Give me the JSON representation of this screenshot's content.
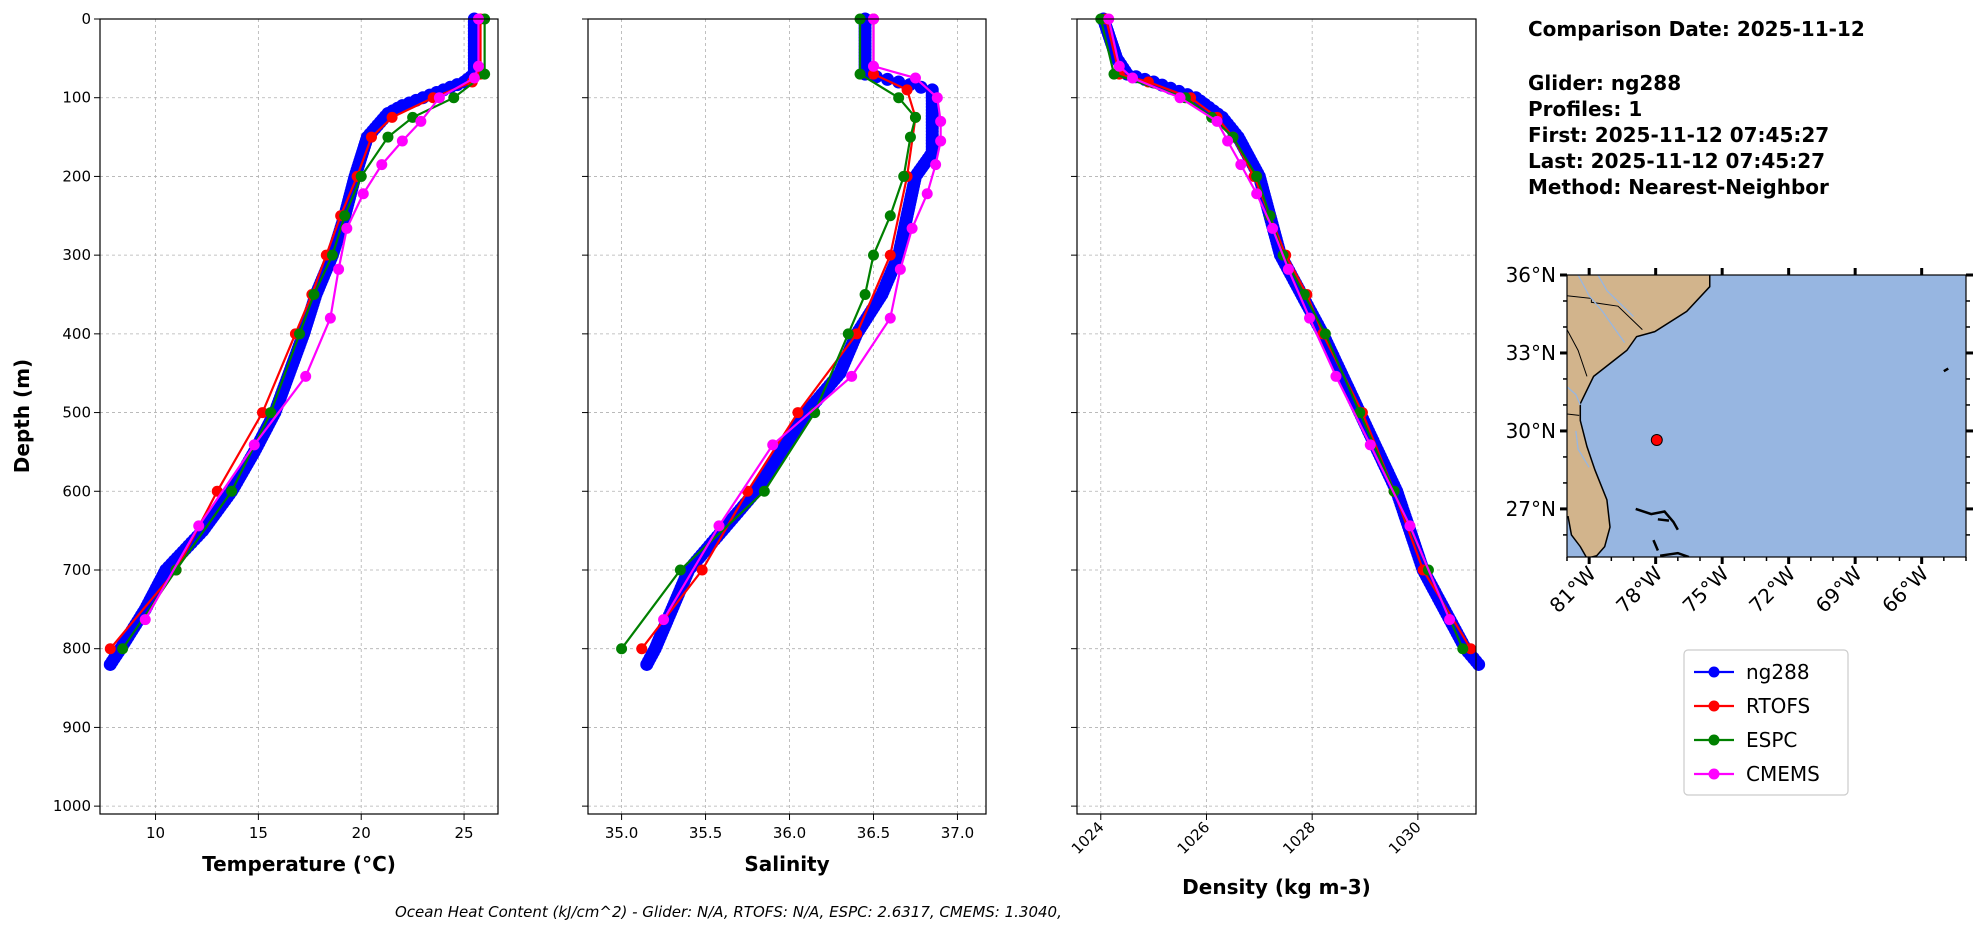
{
  "chart_data": [
    {
      "type": "line",
      "xlabel": "Temperature (°C)",
      "ylabel": "Depth (m)",
      "xlim": [
        7.3,
        26.65
      ],
      "ylim": [
        1010,
        0
      ],
      "xticks": [
        10,
        15,
        20,
        25
      ],
      "xtick_labels": [
        "10",
        "15",
        "20",
        "25"
      ],
      "yticks": [
        0,
        100,
        200,
        300,
        400,
        500,
        600,
        700,
        800,
        900,
        1000
      ],
      "ytick_labels": [
        "0",
        "100",
        "200",
        "300",
        "400",
        "500",
        "600",
        "700",
        "800",
        "900",
        "1000"
      ],
      "grid": true,
      "series": [
        {
          "name": "ng288",
          "depth": [
            0,
            70,
            80,
            90,
            100,
            110,
            120,
            150,
            200,
            250,
            300,
            350,
            400,
            450,
            500,
            550,
            600,
            650,
            700,
            750,
            800,
            820
          ],
          "values": [
            25.5,
            25.5,
            25.0,
            24.0,
            23.0,
            22.0,
            21.3,
            20.3,
            19.7,
            19.2,
            18.6,
            17.8,
            17.2,
            16.5,
            15.8,
            14.8,
            13.7,
            12.3,
            10.5,
            9.5,
            8.3,
            7.8
          ]
        },
        {
          "name": "RTOFS",
          "depth": [
            0,
            70,
            80,
            100,
            125,
            150,
            200,
            250,
            300,
            350,
            400,
            500,
            600,
            700,
            800
          ],
          "values": [
            25.8,
            25.8,
            25.4,
            23.5,
            21.5,
            20.5,
            19.8,
            19.0,
            18.3,
            17.6,
            16.8,
            15.2,
            13.0,
            11.0,
            7.8
          ]
        },
        {
          "name": "ESPC",
          "depth": [
            0,
            70,
            100,
            125,
            150,
            200,
            250,
            300,
            350,
            400,
            500,
            600,
            700,
            800
          ],
          "values": [
            26.0,
            26.0,
            24.5,
            22.5,
            21.3,
            20.0,
            19.2,
            18.6,
            17.7,
            17.0,
            15.6,
            13.7,
            11.0,
            8.4
          ]
        },
        {
          "name": "CMEMS",
          "depth": [
            0,
            60,
            75,
            100,
            130,
            155,
            185,
            222,
            266,
            318,
            380,
            454,
            541,
            644,
            763
          ],
          "values": [
            25.7,
            25.7,
            25.5,
            23.8,
            22.9,
            22.0,
            21.0,
            20.1,
            19.3,
            18.9,
            18.5,
            17.3,
            14.8,
            12.1,
            9.5
          ]
        }
      ]
    },
    {
      "type": "line",
      "xlabel": "Salinity",
      "xlim": [
        34.8,
        37.17
      ],
      "ylim": [
        1010,
        0
      ],
      "xticks": [
        35.0,
        35.5,
        36.0,
        36.5,
        37.0
      ],
      "xtick_labels": [
        "35.0",
        "35.5",
        "36.0",
        "36.5",
        "37.0"
      ],
      "yticks": [
        0,
        100,
        200,
        300,
        400,
        500,
        600,
        700,
        800,
        900,
        1000
      ],
      "grid": true,
      "series": [
        {
          "name": "ng288",
          "depth": [
            0,
            70,
            80,
            90,
            100,
            170,
            200,
            250,
            300,
            350,
            400,
            450,
            500,
            550,
            600,
            650,
            700,
            750,
            800,
            820
          ],
          "values": [
            36.45,
            36.45,
            36.65,
            36.85,
            36.85,
            36.85,
            36.75,
            36.7,
            36.65,
            36.55,
            36.4,
            36.3,
            36.1,
            35.95,
            35.8,
            35.6,
            35.4,
            35.3,
            35.2,
            35.15
          ]
        },
        {
          "name": "RTOFS",
          "depth": [
            0,
            70,
            90,
            125,
            200,
            300,
            400,
            500,
            600,
            700,
            800
          ],
          "values": [
            36.5,
            36.5,
            36.7,
            36.75,
            36.7,
            36.6,
            36.4,
            36.05,
            35.75,
            35.48,
            35.12
          ]
        },
        {
          "name": "ESPC",
          "depth": [
            0,
            70,
            100,
            125,
            150,
            200,
            250,
            300,
            350,
            400,
            500,
            600,
            700,
            800
          ],
          "values": [
            36.42,
            36.42,
            36.65,
            36.75,
            36.72,
            36.68,
            36.6,
            36.5,
            36.45,
            36.35,
            36.15,
            35.85,
            35.35,
            35.0
          ]
        },
        {
          "name": "CMEMS",
          "depth": [
            0,
            60,
            75,
            100,
            130,
            155,
            185,
            222,
            266,
            318,
            380,
            454,
            541,
            644,
            763
          ],
          "values": [
            36.5,
            36.5,
            36.75,
            36.88,
            36.9,
            36.9,
            36.87,
            36.82,
            36.73,
            36.66,
            36.6,
            36.37,
            35.9,
            35.58,
            35.25
          ]
        }
      ]
    },
    {
      "type": "line",
      "xlabel": "Density (kg m-3)",
      "xlim": [
        1023.55,
        1031.1
      ],
      "ylim": [
        1010,
        0
      ],
      "xticks": [
        1024,
        1026,
        1028,
        1030
      ],
      "xtick_labels": [
        "1024",
        "1026",
        "1028",
        "1030"
      ],
      "yticks": [
        0,
        100,
        200,
        300,
        400,
        500,
        600,
        700,
        800,
        900,
        1000
      ],
      "grid": true,
      "series": [
        {
          "name": "ng288",
          "depth": [
            0,
            50,
            70,
            80,
            100,
            125,
            150,
            200,
            300,
            400,
            500,
            600,
            700,
            800,
            820
          ],
          "values": [
            1024.05,
            1024.3,
            1024.5,
            1025.0,
            1025.8,
            1026.3,
            1026.6,
            1027.0,
            1027.4,
            1028.2,
            1028.9,
            1029.6,
            1030.1,
            1030.9,
            1031.15
          ]
        },
        {
          "name": "RTOFS",
          "depth": [
            0,
            70,
            80,
            100,
            125,
            150,
            200,
            250,
            300,
            350,
            400,
            500,
            600,
            700,
            800
          ],
          "values": [
            1024.1,
            1024.35,
            1024.9,
            1025.7,
            1026.2,
            1026.5,
            1026.9,
            1027.2,
            1027.5,
            1027.9,
            1028.2,
            1028.95,
            1029.55,
            1030.1,
            1031.0
          ]
        },
        {
          "name": "ESPC",
          "depth": [
            0,
            70,
            100,
            125,
            150,
            200,
            250,
            300,
            350,
            400,
            500,
            600,
            700,
            800
          ],
          "values": [
            1024.0,
            1024.25,
            1025.6,
            1026.1,
            1026.5,
            1026.95,
            1027.2,
            1027.45,
            1027.85,
            1028.25,
            1028.9,
            1029.55,
            1030.2,
            1030.85
          ]
        },
        {
          "name": "CMEMS",
          "depth": [
            0,
            60,
            75,
            100,
            130,
            155,
            185,
            222,
            266,
            318,
            380,
            454,
            541,
            644,
            763
          ],
          "values": [
            1024.15,
            1024.35,
            1024.6,
            1025.5,
            1026.2,
            1026.4,
            1026.65,
            1026.95,
            1027.25,
            1027.55,
            1027.95,
            1028.45,
            1029.1,
            1029.85,
            1030.6
          ]
        }
      ]
    }
  ],
  "series_colors": {
    "ng288": "#0000ff",
    "RTOFS": "#ff0000",
    "ESPC": "#008000",
    "CMEMS": "#ff00ff"
  },
  "legend": {
    "placement": "right",
    "items": [
      "ng288",
      "RTOFS",
      "ESPC",
      "CMEMS"
    ]
  },
  "info": {
    "comparison_date": "Comparison Date: 2025-11-12",
    "glider": "Glider: ng288",
    "profiles": "Profiles: 1",
    "first": "First: 2025-11-12 07:45:27",
    "last": "Last: 2025-11-12 07:45:27",
    "method": "Method: Nearest-Neighbor"
  },
  "map": {
    "lon_range": [
      -82.0,
      -64.0
    ],
    "lat_range": [
      25.15,
      36.0
    ],
    "lat_ticks": [
      36,
      33,
      30,
      27
    ],
    "lat_tick_labels": [
      "36°N",
      "33°N",
      "30°N",
      "27°N"
    ],
    "lon_ticks": [
      -81,
      -78,
      -75,
      -72,
      -69,
      -66
    ],
    "lon_tick_labels": [
      "81°W",
      "78°W",
      "75°W",
      "72°W",
      "69°W",
      "66°W"
    ],
    "glider_position": {
      "lon": -77.95,
      "lat": 29.65
    },
    "land_color": "#d2b48c",
    "ocean_color": "#97b6e1"
  },
  "footer": "Ocean Heat Content (kJ/cm^2) - Glider: N/A,  RTOFS: N/A,  ESPC: 2.6317,  CMEMS: 1.3040,"
}
